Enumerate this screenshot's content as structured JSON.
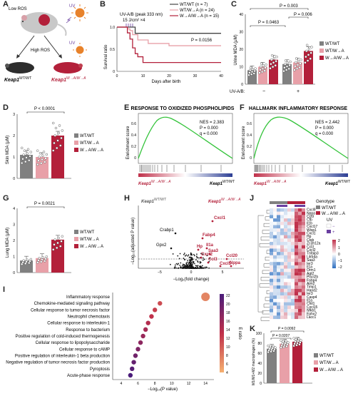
{
  "labels": {
    "a": "A",
    "b": "B",
    "c": "C",
    "d": "D",
    "e": "E",
    "f": "F",
    "g": "G",
    "h": "H",
    "i": "I",
    "j": "J",
    "k": "K"
  },
  "colors": {
    "wt": "#808080",
    "wta": "#e8a0a8",
    "waa": "#b3203a",
    "blue": "#2c3e94",
    "green": "#33c33a"
  },
  "panel_a": {
    "low_ros": "Low ROS",
    "high_ros": "High ROS",
    "uv1": "UV",
    "uv2": "UV",
    "mouse_left": "Keap1",
    "mouse_left_sup": "WT/WT",
    "mouse_right": "Keap1",
    "mouse_right_sup": "W→A/W→A"
  },
  "panel_b": {
    "dose_line1": "UV-A/B (peak 333 nm)",
    "dose_line2": "15 J/cm² ×4",
    "p": "P = 0.0156",
    "ylabel": "Survival ratio",
    "xlabel": "Days after birth",
    "yticks": [
      "0",
      "0.5",
      "1.0"
    ],
    "xticks": [
      "0",
      "10",
      "20",
      "30",
      "40"
    ],
    "legend": [
      "WT/WT (n = 7)",
      "WT/W→A (n = 24)",
      "W→A/W→A (n = 15)"
    ]
  },
  "panel_c": {
    "ylabel": "Urine MDA (μM)",
    "yticks": [
      "0",
      "10",
      "20",
      "30",
      "40"
    ],
    "p1": "P = 0.0463",
    "p2": "P = 0.003",
    "p3": "P = 0.006",
    "uv_label": "UV-A/B:",
    "uv_minus": "−",
    "uv_plus": "+",
    "legend": [
      "WT/WT",
      "WT/W→A",
      "W→A/W→A"
    ]
  },
  "panel_d": {
    "ylabel": "Skin MDA (μM)",
    "yticks": [
      "0",
      "1",
      "2",
      "3"
    ],
    "p": "P < 0.0001",
    "legend": [
      "WT/WT",
      "WT/W→A",
      "W→A/W→A"
    ]
  },
  "panel_e": {
    "title": "RESPONSE TO OXIDIZED PHOSPHOLIPIDS",
    "stats": [
      "NES = 2.383",
      "P = 0.000",
      "q = 0.000"
    ],
    "ylabel": "Enrichment score",
    "yticks": [
      "0.6",
      "0.4",
      "0.2",
      "0"
    ],
    "left": "Keap1",
    "left_sup": "W→A/W→A",
    "right": "Keap1",
    "right_sup": "WT/WT"
  },
  "panel_f": {
    "title": "HALLMARK INFLAMMATORY RESPONSE",
    "stats": [
      "NES = 2.442",
      "P = 0.000",
      "q = 0.000"
    ],
    "ylabel": "Enrichment score",
    "yticks": [
      "0.6",
      "0.4",
      "0.2",
      "0"
    ],
    "left": "Keap1",
    "left_sup": "W→A/W→A",
    "right": "Keap1",
    "right_sup": "WT/WT"
  },
  "panel_g": {
    "ylabel": "Lung MDA (μM)",
    "yticks": [
      "0",
      "1",
      "2",
      "3",
      "4"
    ],
    "p": "P = 0.0021",
    "legend": [
      "WT/WT",
      "WT/W→A",
      "W→A/W→A"
    ]
  },
  "panel_h": {
    "left": "Keap1",
    "left_sup": "WT/WT",
    "right": "Keap1",
    "right_sup": "W→A/W→A",
    "ylabel": "−Log₁₀(adjusted P value)",
    "xlabel": "−Log₂(fold change)",
    "xticks": [
      "−5",
      "0",
      "5"
    ],
    "genes_black": [
      "Crabp1",
      "Gpx2"
    ],
    "genes_red": [
      "Cxcl1",
      "Fabp4",
      "Hp",
      "Il1a",
      "Saa3",
      "Cxcl2",
      "Ccl3",
      "Ccl20",
      "Cxcl5",
      "Nppa"
    ]
  },
  "panel_i": {
    "terms": [
      "Inflammatory response",
      "Chemokine-mediated signaling pathway",
      "Cellular response to tumor necrosis factor",
      "Neutrophil chemotaxis",
      "Cellular response to interleukin-1",
      "Response to bacterium",
      "Positive regulation of cold-induced thermogenesis",
      "Cellular response to lipopolysaccharide",
      "Cellular response to cAMP",
      "Positive regulation of interleukin-1 beta production",
      "Negative regulation of tumor necrosis factor production",
      "Pyroptosis",
      "Acute-phase response"
    ],
    "xticks": [
      "4",
      "6",
      "8",
      "10",
      "12",
      "14"
    ],
    "xlabel": "−Log₁₀(P value)",
    "cbar_ticks": [
      "22",
      "20",
      "18",
      "16",
      "14",
      "12",
      "10",
      "8",
      "6",
      "4"
    ],
    "cbar_label": "E ratio"
  },
  "panel_j": {
    "genes": [
      "Cxcl9",
      "Nppa",
      "Ccl9",
      "Cfb",
      "Il1b",
      "Cxcl17",
      "Wisp1",
      "Cxcl1",
      "Hp",
      "Ctsb",
      "Zc3h12a",
      "Ccl3",
      "Cxcl2",
      "Tnfaip3",
      "Lilrb4a",
      "Saa3",
      "Ier3",
      "Il1a",
      "Orm1",
      "Agt2",
      "Plscl2b",
      "Fabp4",
      "Aim2",
      "Timp1",
      "Hand2",
      "Ier3",
      "Casp4",
      "Il1a",
      "Chil1",
      "Cxcl15",
      "Nfkb1",
      "Ephx2",
      "Lacc1"
    ],
    "genotype_title": "Genotype",
    "genotype_legend": [
      "WT/WT",
      "W→A/W→A"
    ],
    "uv_title": "UV",
    "uv_legend": [
      "−",
      "+"
    ],
    "cbar_ticks": [
      "2",
      "1",
      "0",
      "−1",
      "−2"
    ]
  },
  "panel_k": {
    "ylabel": "M1/M1+M2 macrophages (%)",
    "yticks": [
      "0",
      "20",
      "40",
      "60",
      "80",
      "100"
    ],
    "p1": "P = 0.0092",
    "p2": "P = 0.0207",
    "legend": [
      "WT/WT",
      "WT/W→A",
      "W→A/W→A"
    ]
  },
  "chart_data": [
    {
      "panel": "B",
      "type": "line",
      "xlabel": "Days after birth",
      "ylabel": "Survival ratio",
      "xlim": [
        0,
        40
      ],
      "ylim": [
        0,
        1
      ],
      "series": [
        {
          "name": "WT/WT (n = 7)",
          "x": [
            0,
            5,
            7,
            40
          ],
          "values": [
            1,
            1,
            0.86,
            0.86
          ]
        },
        {
          "name": "WT/W→A (n = 24)",
          "x": [
            0,
            4,
            5,
            6,
            8,
            12,
            20,
            40
          ],
          "values": [
            1,
            0.96,
            0.92,
            0.83,
            0.71,
            0.63,
            0.58,
            0.58
          ]
        },
        {
          "name": "W→A/W→A (n = 15)",
          "x": [
            0,
            4,
            5,
            6,
            7,
            8,
            10,
            40
          ],
          "values": [
            1,
            0.87,
            0.73,
            0.53,
            0.4,
            0.33,
            0.2,
            0.2
          ]
        }
      ]
    },
    {
      "panel": "C",
      "type": "bar",
      "ylabel": "Urine MDA (μM)",
      "ylim": [
        0,
        40
      ],
      "categories": [
        "WT/WT UV−",
        "WT/W→A UV−",
        "W→A/W→A UV−",
        "WT/WT UV+",
        "WT/W→A UV+",
        "W→A/W→A UV+"
      ],
      "values": [
        8,
        10,
        14,
        11.5,
        12.5,
        19
      ]
    },
    {
      "panel": "D",
      "type": "bar",
      "ylabel": "Skin MDA (μM)",
      "ylim": [
        0,
        3
      ],
      "categories": [
        "WT/WT",
        "WT/W→A",
        "W→A/W→A"
      ],
      "values": [
        1.1,
        1.0,
        2.0
      ]
    },
    {
      "panel": "G",
      "type": "bar",
      "ylabel": "Lung MDA (μM)",
      "ylim": [
        0,
        4
      ],
      "categories": [
        "WT/WT",
        "WT/W→A",
        "W→A/W→A"
      ],
      "values": [
        0.75,
        0.9,
        2.05
      ]
    },
    {
      "panel": "K",
      "type": "bar",
      "ylabel": "M1/M1+M2 macrophages (%)",
      "ylim": [
        0,
        100
      ],
      "categories": [
        "WT/WT",
        "WT/W→A",
        "W→A/W→A"
      ],
      "values": [
        69,
        79,
        83
      ]
    },
    {
      "panel": "I",
      "type": "scatter",
      "xlabel": "−Log₁₀(P value)",
      "categories": [
        "Inflammatory response",
        "Chemokine-mediated signaling pathway",
        "Cellular response to tumor necrosis factor",
        "Neutrophil chemotaxis",
        "Cellular response to interleukin-1",
        "Response to bacterium",
        "Positive regulation of cold-induced thermogenesis",
        "Cellular response to lipopolysaccharide",
        "Cellular response to cAMP",
        "Positive regulation of interleukin-1 beta production",
        "Negative regulation of tumor necrosis factor production",
        "Pyroptosis",
        "Acute-phase response"
      ],
      "values": [
        14,
        8.6,
        8,
        7.6,
        7.2,
        6.9,
        6.6,
        6.3,
        6,
        5.7,
        5.5,
        5.3,
        5.1
      ],
      "e_ratio": [
        7,
        11,
        12,
        13,
        14,
        15,
        16,
        17,
        18,
        19,
        20,
        21,
        22
      ]
    }
  ]
}
